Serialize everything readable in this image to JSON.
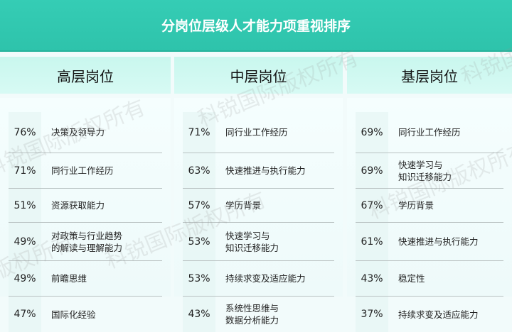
{
  "title": "分岗位层级人才能力项重视排序",
  "watermark": "科锐国际版权所有",
  "colors": {
    "header": "#2ec3ab",
    "column_header": "#cdf8f0"
  },
  "columns": [
    {
      "heading": "高层岗位",
      "rows": [
        {
          "pct": "76%",
          "label": "决策及领导力"
        },
        {
          "pct": "71%",
          "label": "同行业工作经历"
        },
        {
          "pct": "51%",
          "label": "资源获取能力"
        },
        {
          "pct": "49%",
          "label": "对政策与行业趋势\n的解读与理解能力"
        },
        {
          "pct": "49%",
          "label": "前瞻思维"
        },
        {
          "pct": "47%",
          "label": "国际化经验"
        }
      ]
    },
    {
      "heading": "中层岗位",
      "rows": [
        {
          "pct": "71%",
          "label": "同行业工作经历"
        },
        {
          "pct": "63%",
          "label": "快速推进与执行能力"
        },
        {
          "pct": "57%",
          "label": "学历背景"
        },
        {
          "pct": "53%",
          "label": "快速学习与\n知识迁移能力"
        },
        {
          "pct": "53%",
          "label": "持续求变及适应能力"
        },
        {
          "pct": "43%",
          "label": "系统性思维与\n数据分析能力"
        }
      ]
    },
    {
      "heading": "基层岗位",
      "rows": [
        {
          "pct": "69%",
          "label": "同行业工作经历"
        },
        {
          "pct": "69%",
          "label": "快速学习与\n知识迁移能力"
        },
        {
          "pct": "67%",
          "label": "学历背景"
        },
        {
          "pct": "61%",
          "label": "快速推进与执行能力"
        },
        {
          "pct": "43%",
          "label": "稳定性"
        },
        {
          "pct": "37%",
          "label": "持续求变及适应能力"
        }
      ]
    }
  ]
}
